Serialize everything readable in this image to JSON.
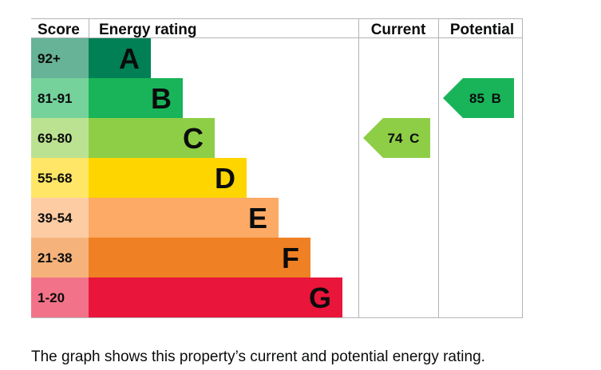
{
  "chart_data": {
    "type": "bar",
    "headers": {
      "score": "Score",
      "rating": "Energy rating",
      "current": "Current",
      "potential": "Potential"
    },
    "bands": [
      {
        "range": "92+",
        "letter": "A",
        "color": "#008054",
        "range_color": "#66b398"
      },
      {
        "range": "81-91",
        "letter": "B",
        "color": "#19b459",
        "range_color": "#75d29b"
      },
      {
        "range": "69-80",
        "letter": "C",
        "color": "#8dce46",
        "range_color": "#bbe290"
      },
      {
        "range": "55-68",
        "letter": "D",
        "color": "#ffd500",
        "range_color": "#ffe666"
      },
      {
        "range": "39-54",
        "letter": "E",
        "color": "#fcaa65",
        "range_color": "#fdcca3"
      },
      {
        "range": "21-38",
        "letter": "F",
        "color": "#ef8023",
        "range_color": "#f5b37b"
      },
      {
        "range": "1-20",
        "letter": "G",
        "color": "#e9153b",
        "range_color": "#f27389"
      }
    ],
    "current": {
      "value": 74,
      "letter": "C",
      "label": "74 C",
      "color": "#8dce46"
    },
    "potential": {
      "value": 85,
      "letter": "B",
      "label": "85 B",
      "color": "#19b459"
    }
  },
  "caption": "The graph shows this property’s current and potential energy rating."
}
